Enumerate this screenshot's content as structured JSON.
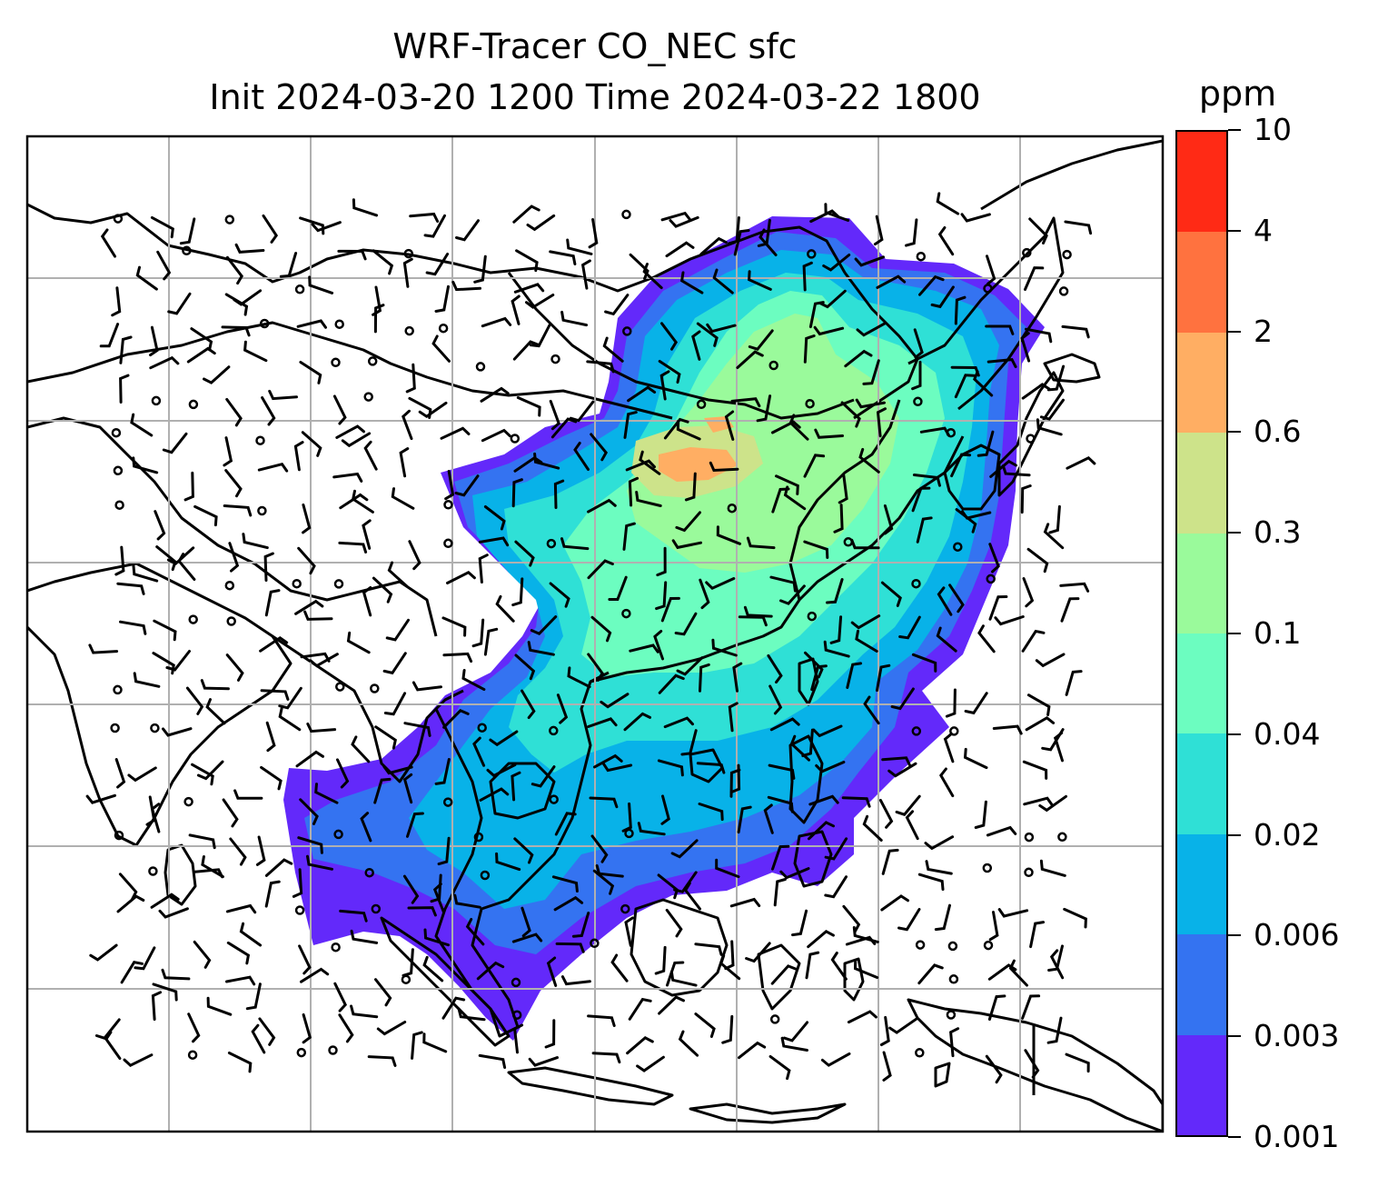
{
  "title": {
    "line1": "WRF-Tracer CO_NEC sfc",
    "line2": "Init 2024-03-20 1200 Time 2024-03-22 1800"
  },
  "colorbar": {
    "unit": "ppm",
    "levels": [
      "0.001",
      "0.003",
      "0.006",
      "0.02",
      "0.04",
      "0.1",
      "0.3",
      "0.6",
      "2",
      "4",
      "10"
    ],
    "colors": [
      "#6329fa",
      "#3473f1",
      "#08b2e8",
      "#2fe0d6",
      "#6cfdc0",
      "#9afa9b",
      "#cde38a",
      "#ffae63",
      "#ff723f",
      "#ff2a15"
    ]
  },
  "map": {
    "field": "CO_NEC surface concentration",
    "overlays": [
      "coastlines",
      "country borders",
      "lat/lon gridlines",
      "wind barbs"
    ]
  }
}
